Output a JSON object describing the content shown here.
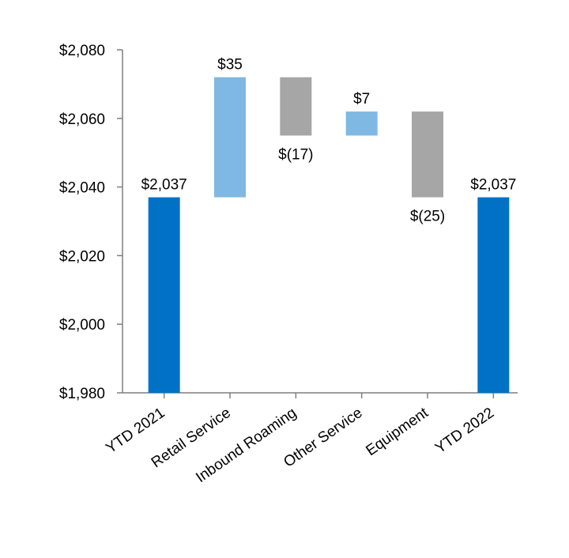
{
  "chart_data": {
    "type": "waterfall",
    "categories": [
      "YTD 2021",
      "Retail Service",
      "Inbound Roaming",
      "Other Service",
      "Equipment",
      "YTD 2022"
    ],
    "measure": [
      "total",
      "relative",
      "relative",
      "relative",
      "relative",
      "total"
    ],
    "values": [
      2037,
      35,
      -17,
      7,
      -25,
      2037
    ],
    "value_labels": [
      "$2,037",
      "$35",
      "$(17)",
      "$7",
      "$(25)",
      "$2,037"
    ],
    "colors": [
      "#0072c6",
      "#7fb8e2",
      "#a6a6a6",
      "#7fb8e2",
      "#a6a6a6",
      "#0072c6"
    ],
    "ylim": [
      1980,
      2080
    ],
    "yticks": [
      {
        "value": 1980,
        "label": "$1,980"
      },
      {
        "value": 2000,
        "label": "$2,000"
      },
      {
        "value": 2020,
        "label": "$2,020"
      },
      {
        "value": 2040,
        "label": "$2,040"
      },
      {
        "value": 2060,
        "label": "$2,060"
      },
      {
        "value": 2080,
        "label": "$2,080"
      }
    ]
  }
}
